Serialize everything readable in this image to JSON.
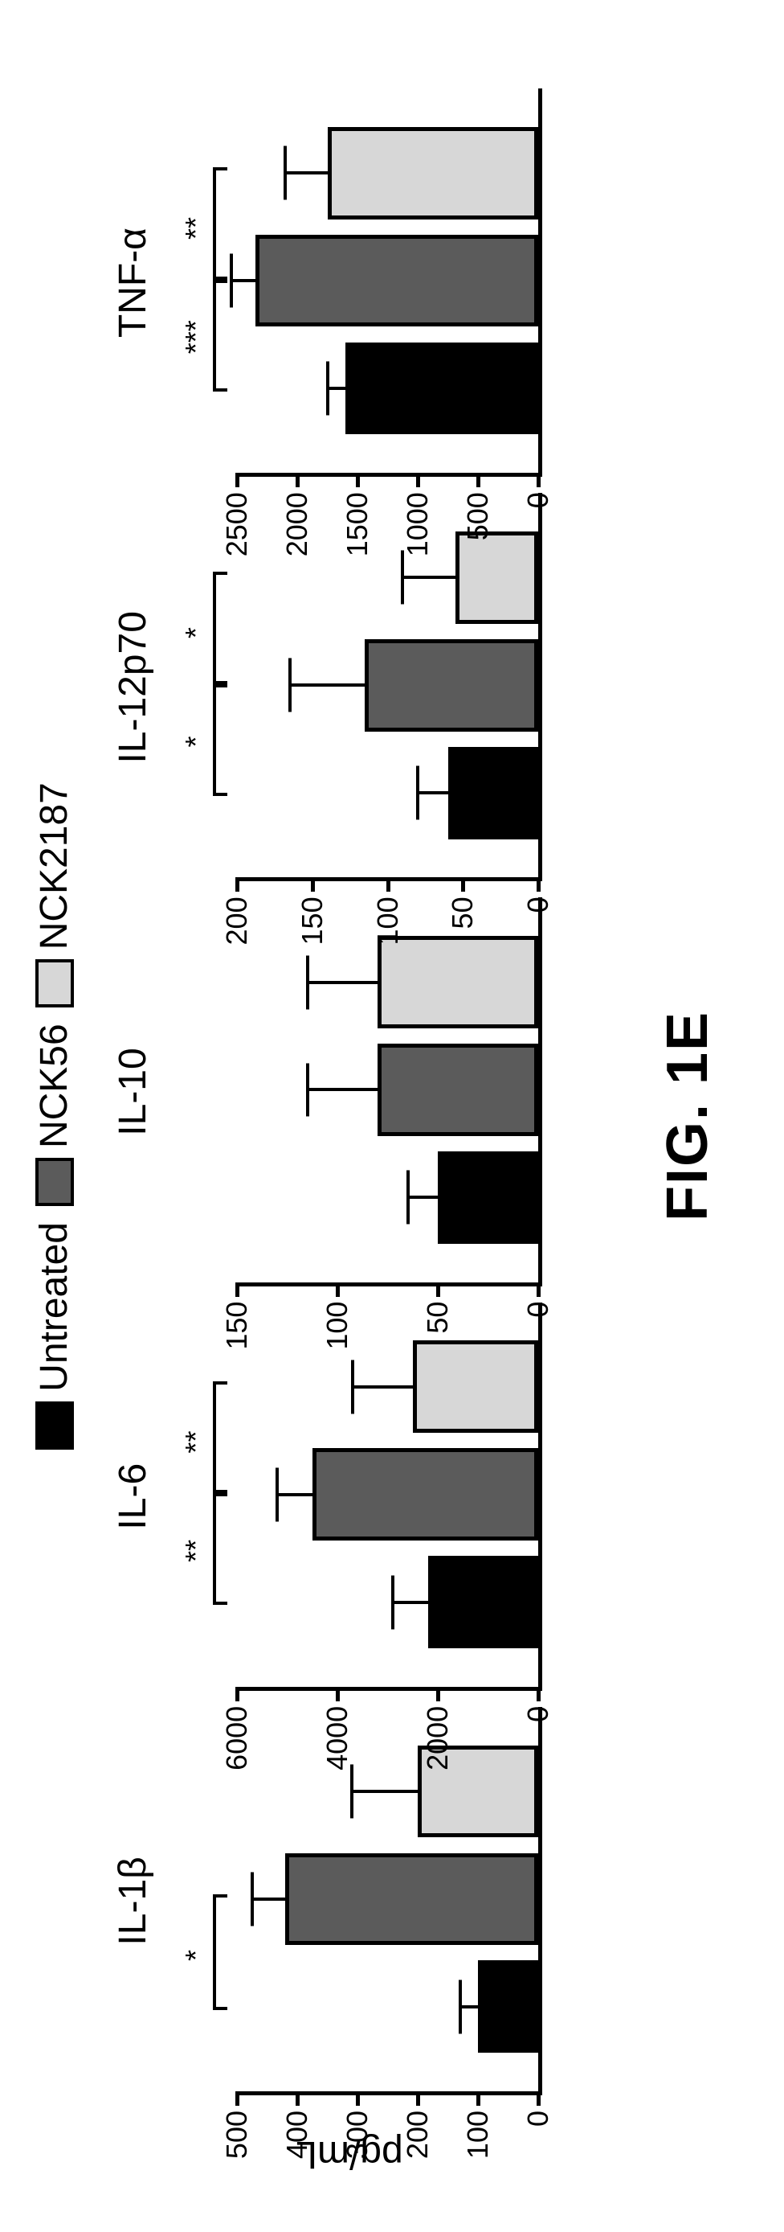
{
  "figure_label": "FIG. 1E",
  "yaxis_label": "pg/mL",
  "legend": [
    {
      "label": "Untreated",
      "color": "#000000"
    },
    {
      "label": "NCK56",
      "color": "#5b5b5b"
    },
    {
      "label": "NCK2187",
      "color": "#d7d7d7"
    }
  ],
  "bar_border_color": "#000000",
  "background_color": "#ffffff",
  "axis_width": 5,
  "tick_length": 18,
  "title_fontsize": 48,
  "tick_fontsize": 36,
  "sig_fontsize": 36,
  "panels": [
    {
      "title": "IL-1β",
      "ymax": 500,
      "ytick_step": 100,
      "bars": [
        {
          "value": 100,
          "err": 30
        },
        {
          "value": 420,
          "err": 55
        },
        {
          "value": 200,
          "err": 110
        }
      ],
      "sig": [
        {
          "from": 0,
          "to": 1,
          "label": "*",
          "level": 0
        }
      ]
    },
    {
      "title": "IL-6",
      "ymax": 6000,
      "ytick_step": 2000,
      "bars": [
        {
          "value": 2200,
          "err": 700
        },
        {
          "value": 4500,
          "err": 700
        },
        {
          "value": 2500,
          "err": 1200
        }
      ],
      "sig": [
        {
          "from": 0,
          "to": 1,
          "label": "**",
          "level": 0
        },
        {
          "from": 1,
          "to": 2,
          "label": "**",
          "level": 0
        }
      ]
    },
    {
      "title": "IL-10",
      "ymax": 150,
      "ytick_step": 50,
      "bars": [
        {
          "value": 50,
          "err": 15
        },
        {
          "value": 80,
          "err": 35
        },
        {
          "value": 80,
          "err": 35
        }
      ],
      "sig": []
    },
    {
      "title": "IL-12p70",
      "ymax": 200,
      "ytick_step": 50,
      "bars": [
        {
          "value": 60,
          "err": 20
        },
        {
          "value": 115,
          "err": 50
        },
        {
          "value": 55,
          "err": 35
        }
      ],
      "sig": [
        {
          "from": 0,
          "to": 1,
          "label": "*",
          "level": 0
        },
        {
          "from": 1,
          "to": 2,
          "label": "*",
          "level": 0
        }
      ]
    },
    {
      "title": "TNF-α",
      "ymax": 2500,
      "ytick_step": 500,
      "bars": [
        {
          "value": 1600,
          "err": 150
        },
        {
          "value": 2350,
          "err": 200
        },
        {
          "value": 1750,
          "err": 350
        }
      ],
      "sig": [
        {
          "from": 0,
          "to": 1,
          "label": "***",
          "level": 0
        },
        {
          "from": 1,
          "to": 2,
          "label": "**",
          "level": 0
        }
      ]
    }
  ]
}
